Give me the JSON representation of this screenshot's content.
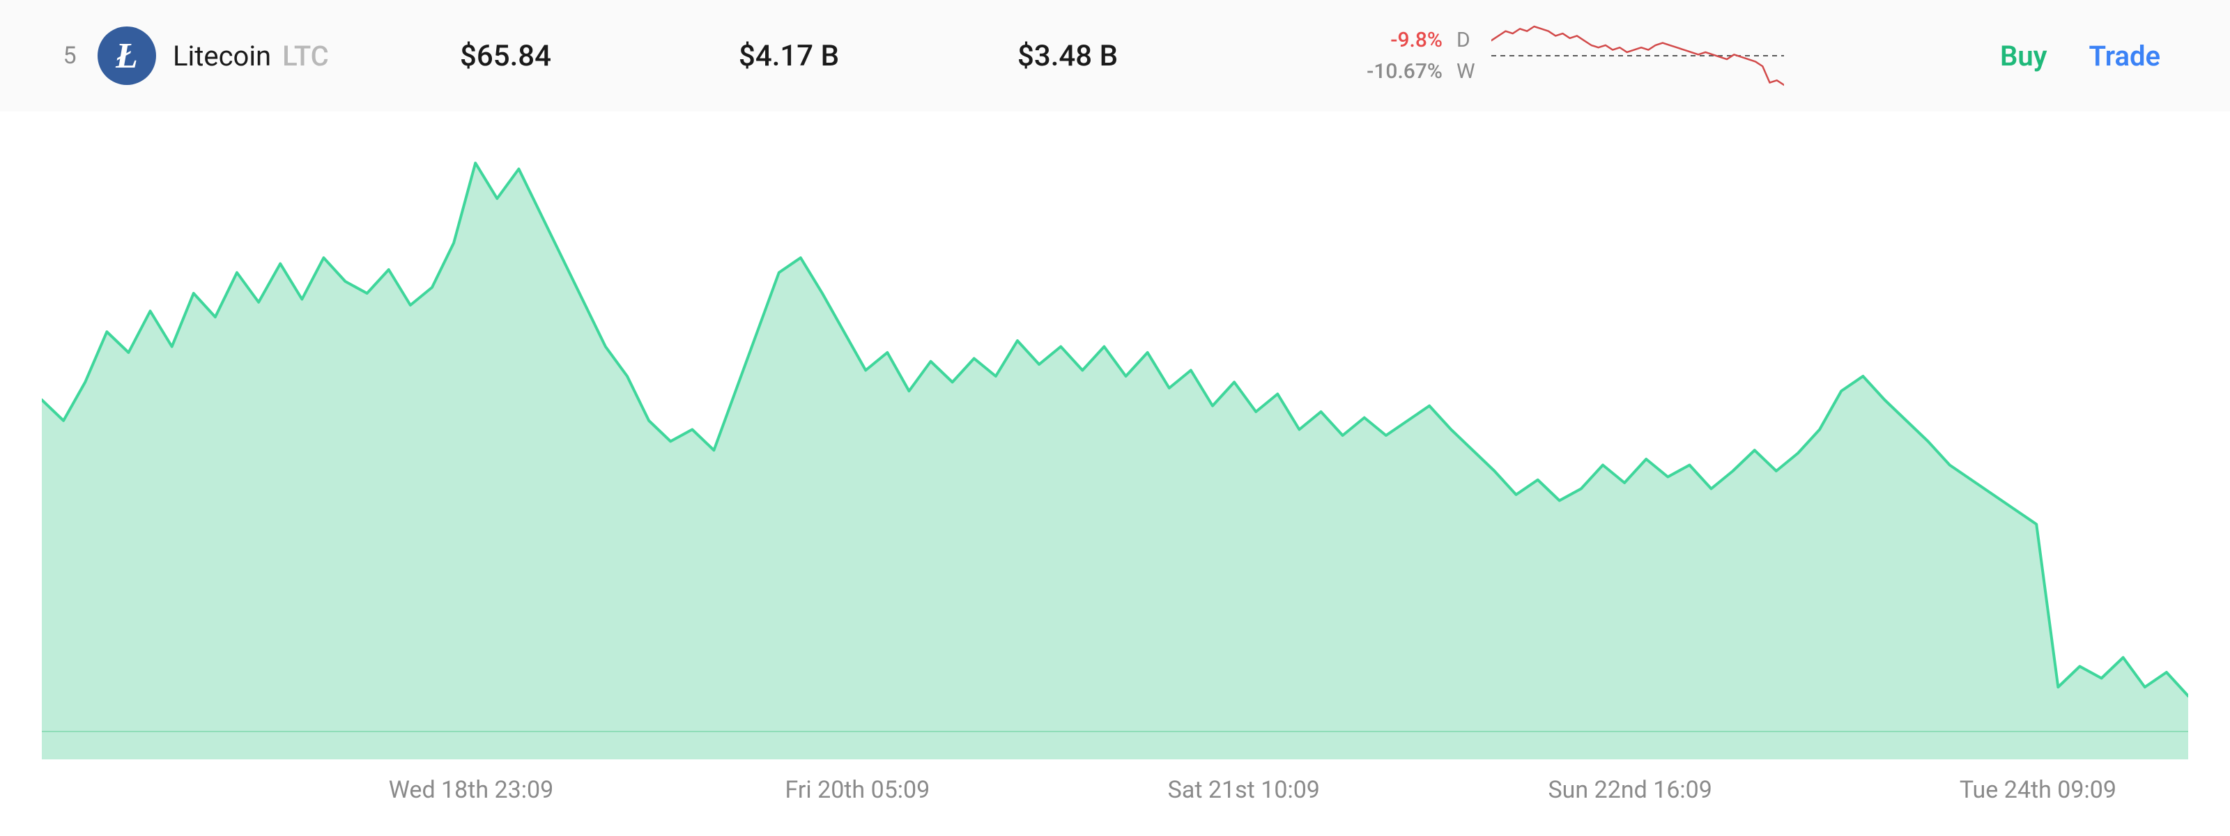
{
  "row": {
    "rank": "5",
    "name": "Litecoin",
    "symbol": "LTC",
    "icon_letter": "Ł",
    "icon_bg": "#345d9d",
    "price": "$65.84",
    "market_cap": "$4.17 B",
    "volume": "$3.48 B",
    "change_day": {
      "pct": "-9.8%",
      "label": "D",
      "color": "#e84c4c"
    },
    "change_week": {
      "pct": "-10.67%",
      "label": "W",
      "color": "#8a8a8a"
    }
  },
  "actions": {
    "buy": {
      "label": "Buy",
      "color": "#27c e8a"
    },
    "trade": {
      "label": "Trade",
      "color": "#3b82f6"
    }
  },
  "sparkline": {
    "stroke": "#d24a4a",
    "stroke_width": 2.5,
    "baseline_color": "#5a5a5a",
    "values": [
      66,
      68,
      70,
      69,
      71,
      70,
      72,
      71,
      70,
      68,
      69,
      67,
      68,
      66,
      64,
      63,
      64,
      62,
      63,
      61,
      62,
      63,
      62,
      64,
      65,
      64,
      63,
      62,
      61,
      60,
      61,
      60,
      59,
      58,
      60,
      59,
      58,
      57,
      55,
      48,
      49,
      47
    ]
  },
  "main_chart": {
    "type": "area",
    "stroke": "#3fd69b",
    "fill": "#a9e7cc",
    "fill_opacity": 0.75,
    "stroke_width": 4,
    "baseline_color": "#8fddb8",
    "background": "#ffffff",
    "y_range": [
      58,
      78
    ],
    "values": [
      69.2,
      68.5,
      69.8,
      71.5,
      70.8,
      72.2,
      71.0,
      72.8,
      72.0,
      73.5,
      72.5,
      73.8,
      72.6,
      74.0,
      73.2,
      72.8,
      73.6,
      72.4,
      73.0,
      74.5,
      77.2,
      76.0,
      77.0,
      75.5,
      74.0,
      72.5,
      71.0,
      70.0,
      68.5,
      67.8,
      68.2,
      67.5,
      69.5,
      71.5,
      73.5,
      74.0,
      72.8,
      71.5,
      70.2,
      70.8,
      69.5,
      70.5,
      69.8,
      70.6,
      70.0,
      71.2,
      70.4,
      71.0,
      70.2,
      71.0,
      70.0,
      70.8,
      69.6,
      70.2,
      69.0,
      69.8,
      68.8,
      69.4,
      68.2,
      68.8,
      68.0,
      68.6,
      68.0,
      68.5,
      69.0,
      68.2,
      67.5,
      66.8,
      66.0,
      66.5,
      65.8,
      66.2,
      67.0,
      66.4,
      67.2,
      66.6,
      67.0,
      66.2,
      66.8,
      67.5,
      66.8,
      67.4,
      68.2,
      69.5,
      70.0,
      69.2,
      68.5,
      67.8,
      67.0,
      66.5,
      66.0,
      65.5,
      65.0,
      59.5,
      60.2,
      59.8,
      60.5,
      59.5,
      60.0,
      59.2
    ],
    "x_ticks": [
      {
        "pos": 0.2,
        "label": "Wed 18th 23:09"
      },
      {
        "pos": 0.38,
        "label": "Fri 20th 05:09"
      },
      {
        "pos": 0.56,
        "label": "Sat 21st 10:09"
      },
      {
        "pos": 0.74,
        "label": "Sun 22nd 16:09"
      },
      {
        "pos": 0.93,
        "label": "Tue 24th 09:09"
      }
    ]
  },
  "colors": {
    "buy": "#1fb97a",
    "trade": "#3b82f6"
  }
}
